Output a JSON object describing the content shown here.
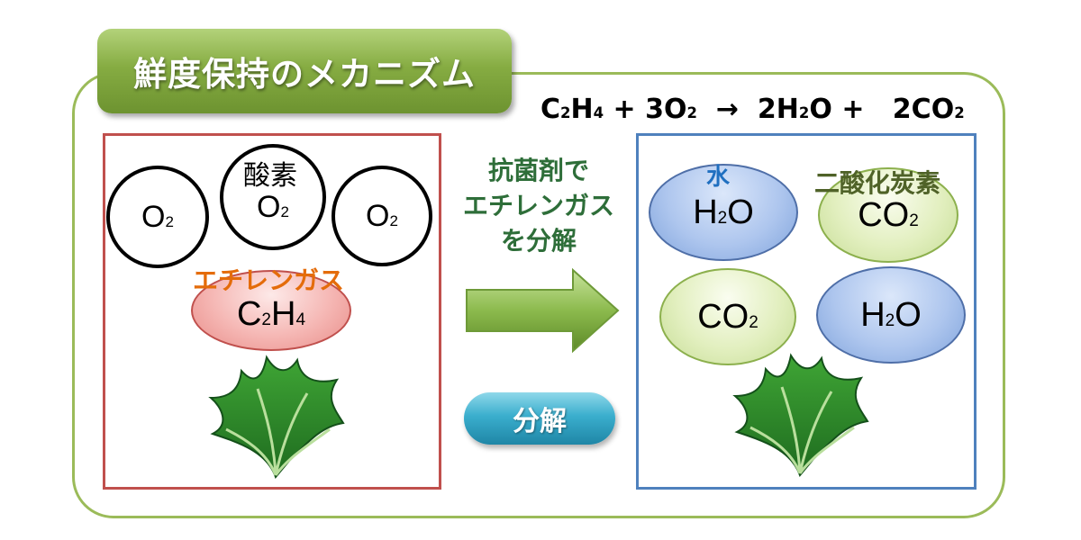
{
  "title": "鮮度保持のメカニズム",
  "equation": {
    "lhs1": "C",
    "lhs1_sub": "2",
    "lhs1b": "H",
    "lhs1b_sub": "4",
    "plus1": " + 3O",
    "plus1_sub": "2",
    "arrow": "  →  2H",
    "arrow_sub": "2",
    "o_plus": "O +   2CO",
    "co_sub": "2"
  },
  "left_panel": {
    "oxygen_molecules": [
      {
        "main": "O",
        "sub": "2"
      },
      {
        "main": "O",
        "sub": "2"
      },
      {
        "main": "O",
        "sub": "2"
      }
    ],
    "oxygen_label": "酸素",
    "ethylene_label": "エチレンガス",
    "ethylene": {
      "c": "C",
      "c_sub": "2",
      "h": "H",
      "h_sub": "4"
    }
  },
  "middle": {
    "line1": "抗菌剤で",
    "line2": "エチレンガス",
    "line3": "を分解",
    "button_label": "分解"
  },
  "right_panel": {
    "water_label": "水",
    "co2_label": "二酸化炭素",
    "molecules": [
      {
        "main_a": "H",
        "sub": "2",
        "main_b": "O"
      },
      {
        "main_a": "CO",
        "sub": "2",
        "main_b": ""
      },
      {
        "main_a": "CO",
        "sub": "2",
        "main_b": ""
      },
      {
        "main_a": "H",
        "sub": "2",
        "main_b": "O"
      }
    ]
  },
  "colors": {
    "frame": "#9bbb59",
    "left_border": "#c0504d",
    "right_border": "#4f81bd",
    "ethylene_label": "#e46c0a",
    "water_label": "#1f6fc0",
    "co2_label": "#4f6228",
    "middle_text": "#2e6e39"
  },
  "icons": [
    "leafy-greens-icon",
    "right-arrow-icon"
  ]
}
